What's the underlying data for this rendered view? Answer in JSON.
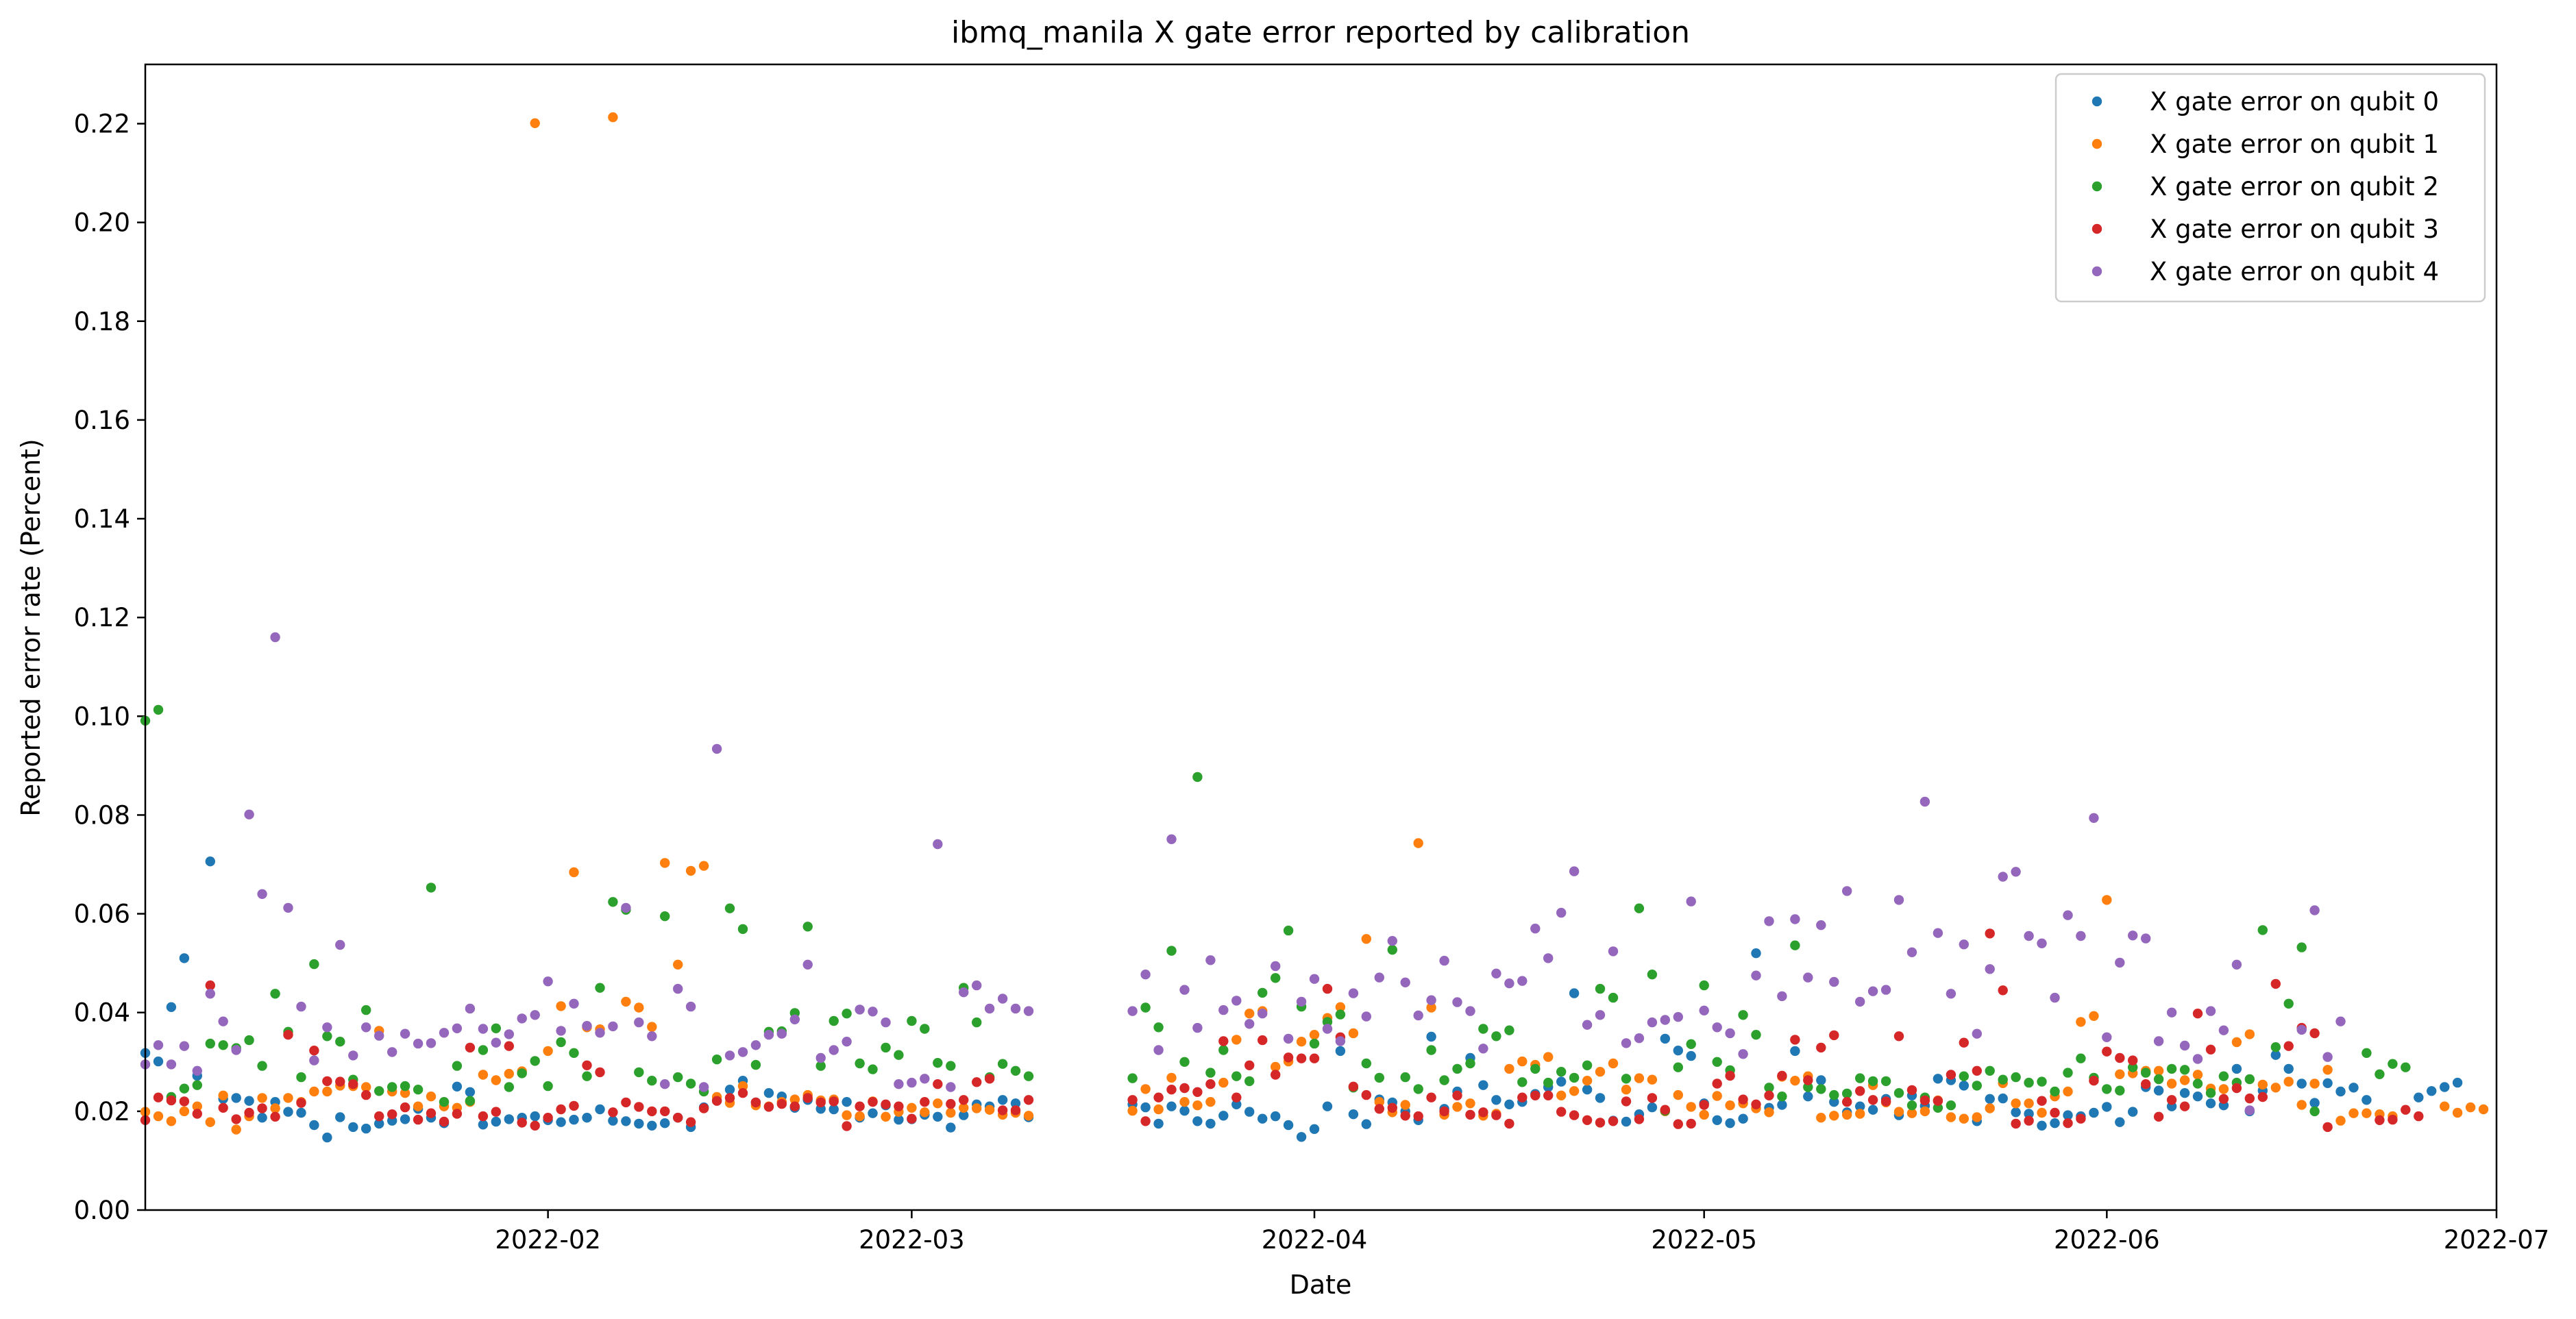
{
  "chart_data": {
    "type": "scatter",
    "title": "ibmq_manila X gate error reported by calibration",
    "xlabel": "Date",
    "ylabel": "Reported error rate (Percent)",
    "x_start": "2022-01-01",
    "x_end": "2022-07-01",
    "xlim": [
      "2022-01-01",
      "2022-07-01"
    ],
    "ylim": [
      0.0,
      0.232
    ],
    "x_ticks": [
      "2022-02",
      "2022-03",
      "2022-04",
      "2022-05",
      "2022-06",
      "2022-07"
    ],
    "x_tick_dates": [
      "2022-02-01",
      "2022-03-01",
      "2022-04-01",
      "2022-05-01",
      "2022-06-01",
      "2022-07-01"
    ],
    "y_ticks": [
      "0.00",
      "0.02",
      "0.04",
      "0.06",
      "0.08",
      "0.10",
      "0.12",
      "0.14",
      "0.16",
      "0.18",
      "0.20",
      "0.22"
    ],
    "y_tick_values": [
      0.0,
      0.02,
      0.04,
      0.06,
      0.08,
      0.1,
      0.12,
      0.14,
      0.16,
      0.18,
      0.2,
      0.22
    ],
    "grid": false,
    "legend_position": "top-right",
    "gap_days": [
      69,
      70,
      71,
      72,
      73,
      74,
      75,
      175,
      176,
      177
    ],
    "series": [
      {
        "name": "X gate error on qubit 0",
        "color": "#1f77b4",
        "values": [
          0.0318,
          0.0301,
          0.0411,
          0.051,
          0.0272,
          0.0706,
          0.0225,
          0.0227,
          0.0221,
          0.0187,
          0.0219,
          0.0199,
          0.0197,
          0.0172,
          0.0147,
          0.0188,
          0.0168,
          0.0165,
          0.0175,
          0.0181,
          0.0184,
          0.0205,
          0.0187,
          0.0176,
          0.025,
          0.0239,
          0.0173,
          0.0179,
          0.0184,
          0.0187,
          0.019,
          0.0182,
          0.0178,
          0.0183,
          0.0187,
          0.0204,
          0.0181,
          0.018,
          0.0175,
          0.0171,
          0.0176,
          0.0187,
          0.0168,
          0.0208,
          0.0222,
          0.0244,
          0.0262,
          0.0218,
          0.0237,
          0.023,
          0.0207,
          0.0223,
          0.0205,
          0.0204,
          0.0219,
          0.0187,
          0.0196,
          0.0212,
          0.0183,
          0.0184,
          0.0193,
          0.0189,
          0.0167,
          0.0192,
          0.0214,
          0.021,
          0.0223,
          0.0216,
          0.0188,
          null,
          null,
          null,
          null,
          null,
          null,
          null,
          0.0214,
          0.0208,
          0.0175,
          0.021,
          0.0201,
          0.018,
          0.0175,
          0.0191,
          0.0214,
          0.0199,
          0.0185,
          0.019,
          0.0172,
          0.0148,
          0.0164,
          0.021,
          0.0322,
          0.0194,
          0.0174,
          0.0224,
          0.0218,
          0.02,
          0.0182,
          0.0351,
          0.0205,
          0.024,
          0.0308,
          0.0253,
          0.0223,
          0.0214,
          0.0219,
          0.0235,
          0.0249,
          0.026,
          0.0439,
          0.0244,
          0.0227,
          0.0181,
          0.0179,
          0.0194,
          0.0208,
          0.0347,
          0.0323,
          0.0312,
          0.0216,
          0.0182,
          0.0176,
          0.0185,
          0.052,
          0.0207,
          0.0213,
          0.0322,
          0.023,
          0.0263,
          0.0219,
          0.0198,
          0.021,
          0.0203,
          0.0225,
          0.0192,
          0.0232,
          0.0211,
          0.0266,
          0.0263,
          0.0252,
          0.018,
          0.0225,
          0.0226,
          0.0198,
          0.0195,
          0.0171,
          0.0176,
          0.0192,
          0.019,
          0.0197,
          0.0209,
          0.0178,
          0.0199,
          0.0249,
          0.0242,
          0.021,
          0.0237,
          0.023,
          0.0216,
          0.0212,
          0.0286,
          0.02,
          0.0242,
          0.0314,
          0.0286,
          0.0256,
          0.0217,
          0.0257,
          0.024,
          0.0248,
          0.0223,
          null,
          null,
          null,
          0.0228,
          0.0241,
          0.0249,
          0.0258
        ]
      },
      {
        "name": "X gate error on qubit 1",
        "color": "#ff7f0e",
        "values": [
          0.0199,
          0.019,
          0.018,
          0.02,
          0.021,
          0.0178,
          0.0232,
          0.0163,
          0.019,
          0.0227,
          0.0206,
          0.0227,
          0.0219,
          0.024,
          0.024,
          0.0252,
          0.0251,
          0.0249,
          0.0363,
          0.024,
          0.0237,
          0.021,
          0.023,
          0.021,
          0.0207,
          0.0219,
          0.0274,
          0.0263,
          0.0276,
          0.0281,
          0.2201,
          0.0322,
          0.0413,
          0.0684,
          0.037,
          0.0366,
          0.2213,
          0.0422,
          0.041,
          0.0371,
          0.0703,
          0.0497,
          0.0687,
          0.0697,
          0.0229,
          0.0217,
          0.0251,
          0.0212,
          0.021,
          0.0219,
          0.0224,
          0.0233,
          0.0222,
          0.0224,
          0.0192,
          0.019,
          0.022,
          0.0189,
          0.0199,
          0.0207,
          0.0198,
          0.0216,
          0.0197,
          0.0207,
          0.0206,
          0.0203,
          0.0193,
          0.0197,
          0.0191,
          null,
          null,
          null,
          null,
          null,
          null,
          null,
          0.0201,
          0.0245,
          0.0204,
          0.0268,
          0.0219,
          0.0212,
          0.0219,
          0.0258,
          0.0345,
          0.0398,
          0.0403,
          0.029,
          0.0301,
          0.0341,
          0.0355,
          0.0389,
          0.0411,
          0.0358,
          0.0549,
          0.0219,
          0.0198,
          0.0213,
          0.0743,
          0.041,
          0.0193,
          0.0209,
          0.0216,
          0.0191,
          0.0195,
          0.0286,
          0.0301,
          0.0294,
          0.031,
          0.0232,
          0.0241,
          0.0262,
          0.028,
          0.0297,
          0.0244,
          0.0267,
          0.0264,
          0.02,
          0.0233,
          0.0209,
          0.0193,
          0.0231,
          0.0212,
          0.0216,
          0.0206,
          0.0198,
          0.027,
          0.0262,
          0.0271,
          0.0187,
          0.0191,
          0.0193,
          0.0195,
          0.0253,
          0.0218,
          0.0199,
          0.0196,
          0.02,
          0.0222,
          0.0188,
          0.0185,
          0.0188,
          0.0206,
          0.0257,
          0.0216,
          0.0216,
          0.0197,
          0.023,
          0.024,
          0.0381,
          0.0393,
          0.0628,
          0.0275,
          0.0277,
          0.0282,
          0.0282,
          0.0256,
          0.0263,
          0.0274,
          0.0246,
          0.0245,
          0.034,
          0.0356,
          0.0254,
          0.0248,
          0.026,
          0.0213,
          0.0256,
          0.0284,
          0.0181,
          0.0196,
          0.0196,
          0.0194,
          0.019,
          null,
          null,
          null,
          0.021,
          0.0197,
          0.0208,
          0.0204
        ]
      },
      {
        "name": "X gate error on qubit 2",
        "color": "#2ca02c",
        "values": [
          0.0991,
          0.1013,
          0.0229,
          0.0246,
          0.0253,
          0.0337,
          0.0334,
          0.0328,
          0.0344,
          0.0292,
          0.0438,
          0.0361,
          0.0269,
          0.0498,
          0.0352,
          0.0341,
          0.0264,
          0.0405,
          0.0241,
          0.0249,
          0.0251,
          0.0244,
          0.0653,
          0.0219,
          0.0292,
          0.0221,
          0.0324,
          0.0368,
          0.0249,
          0.0277,
          0.0302,
          0.0251,
          0.034,
          0.0318,
          0.0271,
          0.045,
          0.0624,
          0.0608,
          0.0279,
          0.0262,
          0.0595,
          0.0269,
          0.0256,
          0.024,
          0.0305,
          0.0611,
          0.0569,
          0.0294,
          0.0361,
          0.0362,
          0.0399,
          0.0574,
          0.0292,
          0.0383,
          0.0398,
          0.0297,
          0.0285,
          0.0329,
          0.0314,
          0.0383,
          0.0367,
          0.0298,
          0.0292,
          0.045,
          0.038,
          0.0269,
          0.0296,
          0.0282,
          0.0271,
          null,
          null,
          null,
          null,
          null,
          null,
          null,
          0.0267,
          0.041,
          0.037,
          0.0525,
          0.03,
          0.0877,
          0.0278,
          0.0324,
          0.0271,
          0.0261,
          0.044,
          0.047,
          0.0566,
          0.0412,
          0.0337,
          0.0381,
          0.0396,
          0.0248,
          0.0297,
          0.0268,
          0.0527,
          0.0269,
          0.0245,
          0.0324,
          0.0263,
          0.0286,
          0.0297,
          0.0367,
          0.0352,
          0.0364,
          0.0259,
          0.0286,
          0.0258,
          0.028,
          0.0268,
          0.0293,
          0.0448,
          0.043,
          0.0266,
          0.0611,
          0.0477,
          0.0201,
          0.0289,
          0.0336,
          0.0455,
          0.03,
          0.0283,
          0.0395,
          0.0355,
          0.0248,
          0.023,
          0.0536,
          0.0249,
          0.0245,
          0.0233,
          0.0236,
          0.0267,
          0.0261,
          0.0261,
          0.0237,
          0.0212,
          0.0228,
          0.0207,
          0.0212,
          0.0271,
          0.0252,
          0.0282,
          0.0264,
          0.0269,
          0.0258,
          0.026,
          0.024,
          0.0278,
          0.0307,
          0.0268,
          0.0245,
          0.0242,
          0.0289,
          0.0278,
          0.0265,
          0.0286,
          0.0284,
          0.0256,
          0.0237,
          0.0271,
          0.0258,
          0.0265,
          0.0567,
          0.033,
          0.0418,
          0.0532,
          0.02,
          null,
          null,
          null,
          0.0318,
          0.0275,
          0.0296,
          0.0289
        ]
      },
      {
        "name": "X gate error on qubit 3",
        "color": "#d62728",
        "values": [
          0.0182,
          0.0228,
          0.0222,
          0.022,
          0.0195,
          0.0455,
          0.0207,
          0.0184,
          0.0197,
          0.0206,
          0.0189,
          0.0355,
          0.0217,
          0.0323,
          0.0261,
          0.026,
          0.0255,
          0.0233,
          0.019,
          0.0194,
          0.0208,
          0.0183,
          0.0196,
          0.0179,
          0.0195,
          0.0329,
          0.019,
          0.0199,
          0.0332,
          0.0177,
          0.0171,
          0.0187,
          0.0204,
          0.0211,
          0.0293,
          0.0279,
          0.0198,
          0.0218,
          0.0209,
          0.02,
          0.02,
          0.0187,
          0.0178,
          0.0206,
          0.0221,
          0.0227,
          0.0237,
          0.0218,
          0.0209,
          0.0215,
          0.021,
          0.0227,
          0.0218,
          0.022,
          0.017,
          0.021,
          0.0219,
          0.0214,
          0.021,
          0.0185,
          0.0219,
          0.0255,
          0.0215,
          0.0223,
          0.0259,
          0.0266,
          0.0202,
          0.0202,
          0.0223,
          null,
          null,
          null,
          null,
          null,
          null,
          null,
          0.0223,
          0.018,
          0.0228,
          0.0244,
          0.0247,
          0.0239,
          0.0255,
          0.0342,
          0.0228,
          0.0293,
          0.0344,
          0.0274,
          0.0309,
          0.0307,
          0.0307,
          0.0448,
          0.035,
          0.025,
          0.0233,
          0.0205,
          0.0207,
          0.0191,
          0.019,
          0.0228,
          0.02,
          0.0232,
          0.0193,
          0.0198,
          0.0192,
          0.0175,
          0.0228,
          0.0232,
          0.0232,
          0.0199,
          0.0192,
          0.0182,
          0.0177,
          0.018,
          0.022,
          0.0184,
          0.0227,
          0.0203,
          0.0174,
          0.0175,
          0.0213,
          0.0256,
          0.0272,
          0.0224,
          0.0214,
          0.0232,
          0.0272,
          0.0345,
          0.0263,
          0.0329,
          0.0354,
          0.0219,
          0.0241,
          0.0223,
          0.022,
          0.0352,
          0.0243,
          0.0222,
          0.0221,
          0.0274,
          0.0339,
          0.0282,
          0.056,
          0.0445,
          0.0175,
          0.0181,
          0.0221,
          0.0197,
          0.0176,
          0.0185,
          0.0262,
          0.0321,
          0.0308,
          0.0303,
          0.0255,
          0.0189,
          0.0223,
          0.021,
          0.0398,
          0.0325,
          0.0225,
          0.0247,
          0.0226,
          0.0229,
          0.0458,
          0.0332,
          0.0369,
          0.0358,
          0.0168,
          null,
          null,
          null,
          0.0182,
          0.0183,
          0.0203,
          0.019
        ]
      },
      {
        "name": "X gate error on qubit 4",
        "color": "#9467bd",
        "values": [
          0.0295,
          0.0334,
          0.0295,
          0.0332,
          0.0282,
          0.0438,
          0.0382,
          0.0324,
          0.0801,
          0.064,
          0.116,
          0.0612,
          0.0412,
          0.0303,
          0.037,
          0.0537,
          0.0313,
          0.037,
          0.0353,
          0.032,
          0.0357,
          0.0337,
          0.0338,
          0.0359,
          0.0368,
          0.0408,
          0.0367,
          0.0339,
          0.0356,
          0.0388,
          0.0395,
          0.0463,
          0.0363,
          0.0418,
          0.0373,
          0.0359,
          0.0372,
          0.0612,
          0.038,
          0.0352,
          0.0255,
          0.0448,
          0.0412,
          0.0249,
          0.0934,
          0.0313,
          0.032,
          0.0334,
          0.0355,
          0.0357,
          0.0386,
          0.0497,
          0.0308,
          0.0324,
          0.0341,
          0.0406,
          0.0402,
          0.038,
          0.0255,
          0.0258,
          0.0266,
          0.0741,
          0.0249,
          0.0441,
          0.0455,
          0.0408,
          0.0428,
          0.0408,
          0.0403,
          null,
          null,
          null,
          null,
          null,
          null,
          null,
          0.0403,
          0.0477,
          0.0324,
          0.0751,
          0.0446,
          0.0369,
          0.0506,
          0.0405,
          0.0424,
          0.0377,
          0.0398,
          0.0494,
          0.0347,
          0.0422,
          0.0468,
          0.0367,
          0.0342,
          0.0439,
          0.0392,
          0.0471,
          0.0545,
          0.0461,
          0.0394,
          0.0425,
          0.0505,
          0.0421,
          0.0403,
          0.0327,
          0.0479,
          0.0459,
          0.0464,
          0.057,
          0.051,
          0.0602,
          0.0686,
          0.0375,
          0.0395,
          0.0524,
          0.0338,
          0.0348,
          0.038,
          0.0385,
          0.0391,
          0.0625,
          0.0404,
          0.037,
          0.0358,
          0.0316,
          0.0475,
          0.0585,
          0.0433,
          0.0589,
          0.0471,
          0.0577,
          0.0462,
          0.0646,
          0.0422,
          0.0443,
          0.0446,
          0.0628,
          0.0522,
          0.0827,
          0.0561,
          0.0438,
          0.0538,
          0.0357,
          0.0488,
          0.0675,
          0.0685,
          0.0555,
          0.054,
          0.043,
          0.0597,
          0.0555,
          0.0794,
          0.035,
          0.0501,
          0.0556,
          0.055,
          0.0342,
          0.04,
          0.0333,
          0.0306,
          0.0403,
          0.0364,
          0.0497,
          0.0202,
          null,
          null,
          null,
          0.0365,
          0.0607,
          0.031,
          0.0382
        ]
      }
    ]
  }
}
